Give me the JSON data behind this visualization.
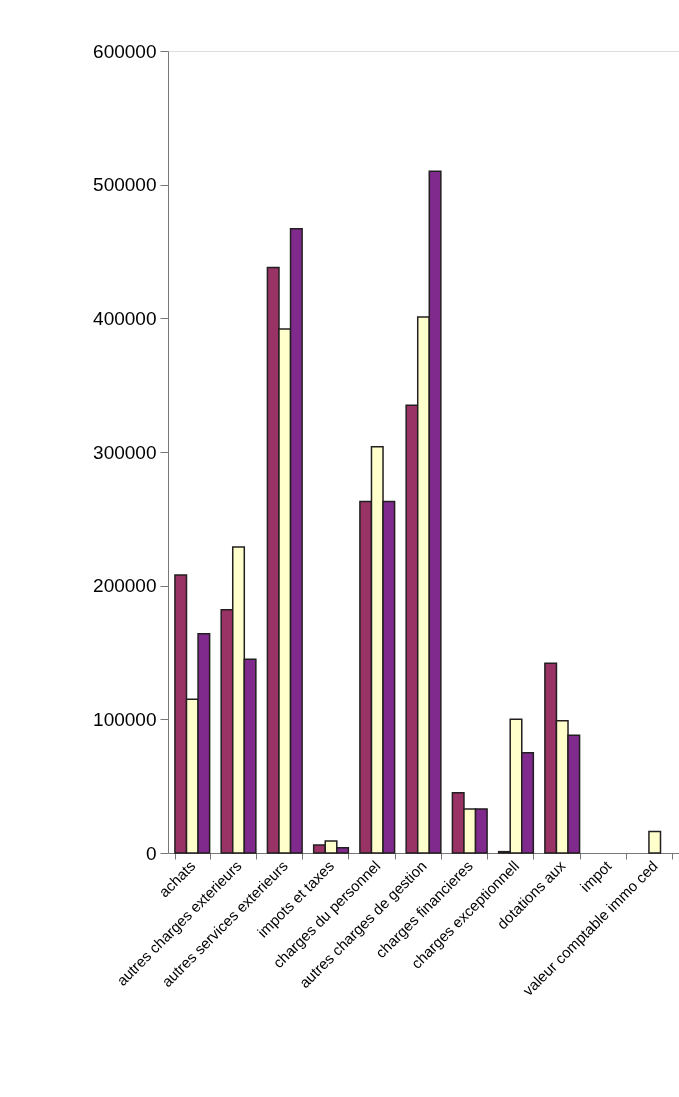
{
  "chart_data": {
    "type": "bar",
    "categories": [
      "achats",
      "autres charges exterieurs",
      "autres services exterieurs",
      "impots et taxes",
      "charges du personnel",
      "autres charges de gestion",
      "charges financieres",
      "charges exceptionnell",
      "dotations aux",
      "impot",
      "valeur comptable immo ced"
    ],
    "series": [
      {
        "color": "#993366",
        "values": [
          208000,
          182000,
          438000,
          6000,
          263000,
          335000,
          45000,
          1000,
          142000,
          null,
          null
        ]
      },
      {
        "color": "#ffffcc",
        "values": [
          115000,
          229000,
          392000,
          9000,
          304000,
          401000,
          33000,
          100000,
          99000,
          null,
          16000
        ]
      },
      {
        "color": "#7f2a8c",
        "values": [
          164000,
          145000,
          467000,
          4000,
          263000,
          510000,
          33000,
          75000,
          88000,
          null,
          null
        ]
      }
    ],
    "ylim": [
      0,
      600000
    ],
    "yticks": [
      0,
      100000,
      200000,
      300000,
      400000,
      500000,
      600000
    ],
    "grid": false,
    "legend": false
  }
}
